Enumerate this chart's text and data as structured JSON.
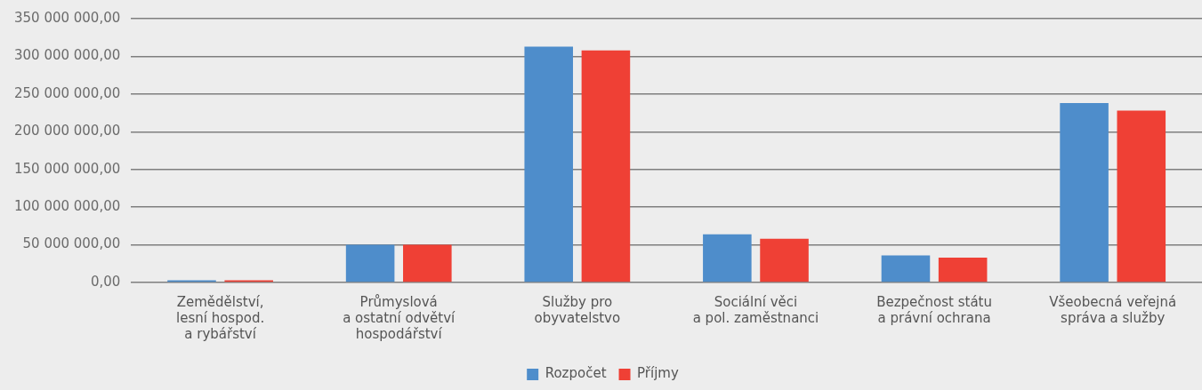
{
  "chart_data": {
    "type": "bar",
    "categories": [
      "Zemědělství,\nlesní hospod.\na rybářství",
      "Průmyslová\na ostatní odvětví\nhospodářství",
      "Služby pro\nobyvatelstvo",
      "Sociální věci\na pol. zaměstnanci",
      "Bezpečnost státu\na právní ochrana",
      "Všeobecná veřejná\nspráva a služby"
    ],
    "series": [
      {
        "name": "Rozpočet",
        "color": "#4e8dcb",
        "values": [
          3000000,
          50000000,
          313000000,
          64000000,
          36000000,
          238000000
        ]
      },
      {
        "name": "Příjmy",
        "color": "#ef4035",
        "values": [
          3000000,
          50000000,
          308000000,
          58000000,
          33000000,
          228000000
        ]
      }
    ],
    "ylim": [
      0,
      350000000
    ],
    "yticks": [
      {
        "value": 0,
        "label": "0,00"
      },
      {
        "value": 50000000,
        "label": "50 000 000,00"
      },
      {
        "value": 100000000,
        "label": "100 000 000,00"
      },
      {
        "value": 150000000,
        "label": "150 000 000,00"
      },
      {
        "value": 200000000,
        "label": "200 000 000,00"
      },
      {
        "value": 250000000,
        "label": "250 000 000,00"
      },
      {
        "value": 300000000,
        "label": "300 000 000,00"
      },
      {
        "value": 350000000,
        "label": "350 000 000,00"
      }
    ],
    "grid": "y",
    "legend": "bottom"
  }
}
